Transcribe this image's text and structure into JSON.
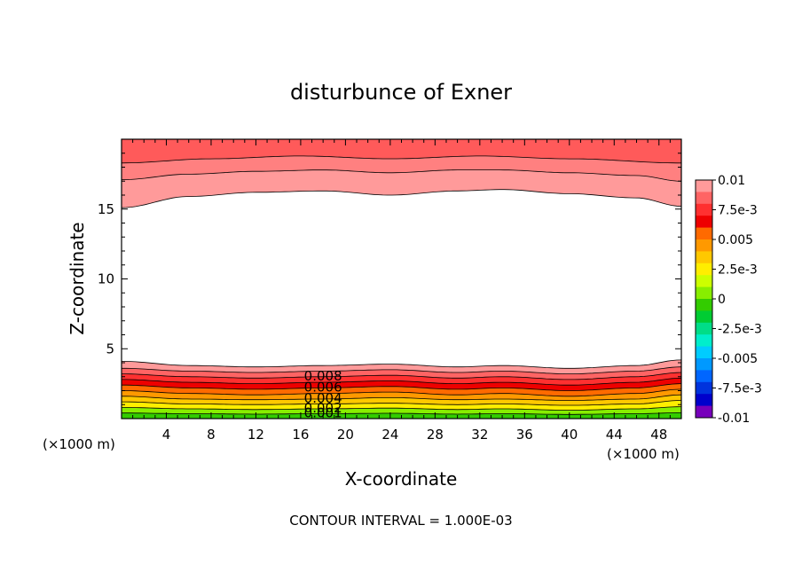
{
  "chart_data": {
    "type": "heatmap",
    "title": "disturbunce of Exner",
    "xlabel": "X-coordinate",
    "ylabel": "Z-coordinate",
    "x_unit_left": "(×1000 m)",
    "x_unit_right": "(×1000 m)",
    "footer": "CONTOUR INTERVAL = 1.000E-03",
    "xlim": [
      0,
      50
    ],
    "ylim": [
      0,
      20
    ],
    "x_ticks": [
      4,
      8,
      12,
      16,
      20,
      24,
      28,
      32,
      36,
      40,
      44,
      48
    ],
    "y_ticks": [
      5,
      10,
      15
    ],
    "grid": false,
    "legend": "right",
    "colorbar": {
      "labels": [
        "0.01",
        "7.5e-3",
        "0.005",
        "2.5e-3",
        "0",
        "-2.5e-3",
        "-0.005",
        "-7.5e-3",
        "-0.01"
      ],
      "label_values": [
        0.01,
        0.0075,
        0.005,
        0.0025,
        0,
        -0.0025,
        -0.005,
        -0.0075,
        -0.01
      ],
      "range": [
        -0.01,
        0.01
      ],
      "colors": [
        "#ff9a9a",
        "#ff6464",
        "#ff3030",
        "#ee0000",
        "#ff6a00",
        "#ff9900",
        "#ffc800",
        "#ffee00",
        "#ccff00",
        "#88ee00",
        "#33cc00",
        "#00cc33",
        "#00dd88",
        "#00eecc",
        "#00ccff",
        "#0099ff",
        "#0066ff",
        "#0033dd",
        "#0000cc",
        "#7700bb"
      ]
    },
    "contour_labels": [
      "0.008",
      "0.006",
      "0.004",
      "0.002",
      "0.001"
    ],
    "contour_label_x": 18,
    "fill_levels": [
      0.001,
      0.002,
      0.003,
      0.004,
      0.005,
      0.006,
      0.007,
      0.008,
      0.009,
      0.01
    ],
    "fill_colors": [
      "#33cc00",
      "#88ee00",
      "#ccff00",
      "#ffee00",
      "#ffc800",
      "#ff9900",
      "#ff6a00",
      "#ee0000",
      "#ff3030",
      "#ff6464"
    ],
    "top_fill_colors": [
      "#ff9a9a",
      "#ff8080",
      "#ff5a5a"
    ],
    "top_contours": [
      {
        "x": [
          0,
          6,
          12,
          18,
          24,
          30,
          34,
          40,
          46,
          50
        ],
        "z": [
          15.1,
          15.9,
          16.2,
          16.3,
          16.0,
          16.3,
          16.4,
          16.1,
          15.8,
          15.2
        ]
      },
      {
        "x": [
          0,
          6,
          12,
          18,
          24,
          30,
          34,
          40,
          46,
          50
        ],
        "z": [
          17.1,
          17.5,
          17.7,
          17.8,
          17.6,
          17.8,
          17.8,
          17.6,
          17.4,
          17.0
        ]
      },
      {
        "x": [
          0,
          8,
          16,
          24,
          32,
          40,
          50
        ],
        "z": [
          18.3,
          18.6,
          18.8,
          18.6,
          18.8,
          18.6,
          18.3
        ]
      }
    ],
    "bottom_contours": [
      {
        "x": [
          0,
          6,
          12,
          18,
          24,
          30,
          34,
          40,
          46,
          50
        ],
        "z": [
          4.1,
          3.8,
          3.7,
          3.8,
          3.9,
          3.7,
          3.8,
          3.6,
          3.8,
          4.2
        ]
      },
      {
        "x": [
          0,
          6,
          12,
          18,
          24,
          30,
          34,
          40,
          46,
          50
        ],
        "z": [
          3.6,
          3.4,
          3.3,
          3.4,
          3.5,
          3.3,
          3.4,
          3.2,
          3.4,
          3.7
        ]
      },
      {
        "x": [
          0,
          6,
          12,
          18,
          24,
          30,
          34,
          40,
          46,
          50
        ],
        "z": [
          3.2,
          3.0,
          2.9,
          3.0,
          3.1,
          2.9,
          3.0,
          2.8,
          3.0,
          3.3
        ]
      },
      {
        "x": [
          0,
          6,
          12,
          18,
          24,
          30,
          34,
          40,
          46,
          50
        ],
        "z": [
          2.8,
          2.6,
          2.5,
          2.6,
          2.7,
          2.5,
          2.6,
          2.4,
          2.6,
          2.9
        ]
      },
      {
        "x": [
          0,
          6,
          12,
          18,
          24,
          30,
          34,
          40,
          46,
          50
        ],
        "z": [
          2.4,
          2.2,
          2.1,
          2.2,
          2.3,
          2.1,
          2.2,
          2.0,
          2.2,
          2.5
        ]
      },
      {
        "x": [
          0,
          6,
          12,
          18,
          24,
          30,
          34,
          40,
          46,
          50
        ],
        "z": [
          2.0,
          1.8,
          1.7,
          1.8,
          1.9,
          1.7,
          1.8,
          1.6,
          1.8,
          2.1
        ]
      },
      {
        "x": [
          0,
          6,
          12,
          18,
          24,
          30,
          34,
          40,
          46,
          50
        ],
        "z": [
          1.6,
          1.4,
          1.35,
          1.4,
          1.5,
          1.35,
          1.4,
          1.3,
          1.4,
          1.7
        ]
      },
      {
        "x": [
          0,
          6,
          12,
          18,
          24,
          30,
          34,
          40,
          46,
          50
        ],
        "z": [
          1.2,
          1.05,
          1.0,
          1.05,
          1.1,
          1.0,
          1.05,
          0.95,
          1.05,
          1.3
        ]
      },
      {
        "x": [
          0,
          6,
          12,
          18,
          24,
          30,
          34,
          40,
          46,
          50
        ],
        "z": [
          0.8,
          0.7,
          0.65,
          0.7,
          0.75,
          0.65,
          0.7,
          0.6,
          0.7,
          0.85
        ]
      },
      {
        "x": [
          0,
          6,
          12,
          18,
          24,
          30,
          34,
          40,
          46,
          50
        ],
        "z": [
          0.4,
          0.35,
          0.32,
          0.35,
          0.38,
          0.32,
          0.35,
          0.3,
          0.35,
          0.42
        ]
      }
    ]
  }
}
